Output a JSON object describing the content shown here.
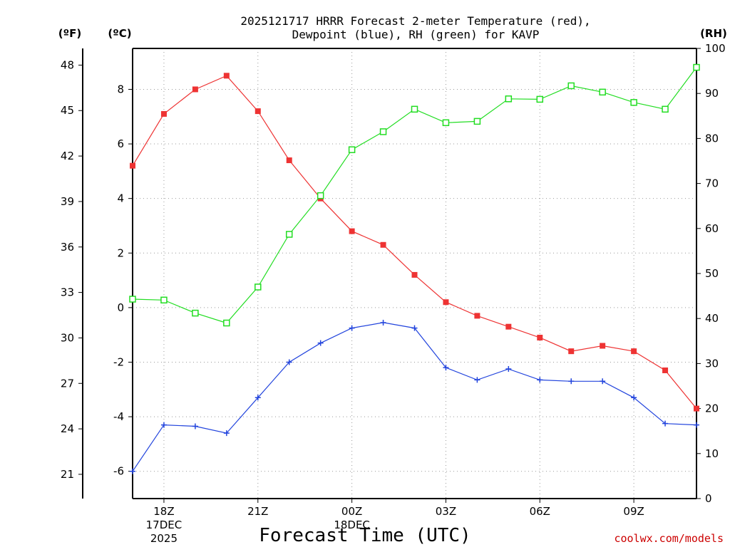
{
  "chart_data": {
    "type": "line",
    "title_line1": "2025121717 HRRR Forecast 2-meter Temperature (red),",
    "title_line2": "Dewpoint (blue), RH (green) for KAVP",
    "xlabel": "Forecast Time (UTC)",
    "credit": "coolwx.com/models",
    "units": {
      "fahrenheit": "(ºF)",
      "celsius": "(ºC)",
      "rh": "(RH)"
    },
    "x_hours": [
      17,
      18,
      19,
      20,
      21,
      22,
      23,
      24,
      25,
      26,
      27,
      28,
      29,
      30,
      31,
      32,
      33,
      34,
      35
    ],
    "x_range": [
      17,
      35
    ],
    "x_ticks": [
      {
        "hour": 18,
        "label": "18Z",
        "date1": "17DEC",
        "date2": "2025"
      },
      {
        "hour": 21,
        "label": "21Z"
      },
      {
        "hour": 24,
        "label": "00Z",
        "date1": "18DEC"
      },
      {
        "hour": 27,
        "label": "03Z"
      },
      {
        "hour": 30,
        "label": "06Z"
      },
      {
        "hour": 33,
        "label": "09Z"
      }
    ],
    "y_left_c": {
      "min": -7,
      "max": 9.5,
      "ticks": [
        "-6",
        "-4",
        "-2",
        "0",
        "2",
        "4",
        "6",
        "8"
      ]
    },
    "y_left_f": {
      "ticks": [
        "21",
        "24",
        "27",
        "30",
        "33",
        "36",
        "39",
        "42",
        "45",
        "48"
      ]
    },
    "y_right_rh": {
      "min": 0,
      "max": 100,
      "ticks": [
        "0",
        "10",
        "20",
        "30",
        "40",
        "50",
        "60",
        "70",
        "80",
        "90",
        "100"
      ]
    },
    "series": [
      {
        "name": "2-meter Temperature",
        "axis": "celsius",
        "color": "#ee3333",
        "marker": "filled-square",
        "values": [
          5.2,
          7.1,
          8.0,
          8.5,
          7.2,
          5.4,
          4.0,
          2.8,
          2.3,
          1.2,
          0.2,
          -0.3,
          -0.7,
          -1.1,
          -1.6,
          -1.4,
          -1.6,
          -2.3,
          -3.7
        ]
      },
      {
        "name": "Dewpoint",
        "axis": "celsius",
        "color": "#2244dd",
        "marker": "plus",
        "values": [
          -6.0,
          -4.3,
          -4.35,
          -4.6,
          -3.3,
          -2.0,
          -1.3,
          -0.75,
          -0.55,
          -0.75,
          -2.2,
          -2.65,
          -2.25,
          -2.65,
          -2.7,
          -2.7,
          -3.3,
          -4.25,
          -4.3
        ]
      },
      {
        "name": "RH",
        "axis": "rh",
        "color": "#22dd22",
        "marker": "open-square",
        "values": [
          44.3,
          44.1,
          41.2,
          39.0,
          47.0,
          58.7,
          67.3,
          77.5,
          81.5,
          86.5,
          83.5,
          83.8,
          88.8,
          88.7,
          91.7,
          90.3,
          88.0,
          86.5,
          95.8
        ]
      }
    ]
  }
}
